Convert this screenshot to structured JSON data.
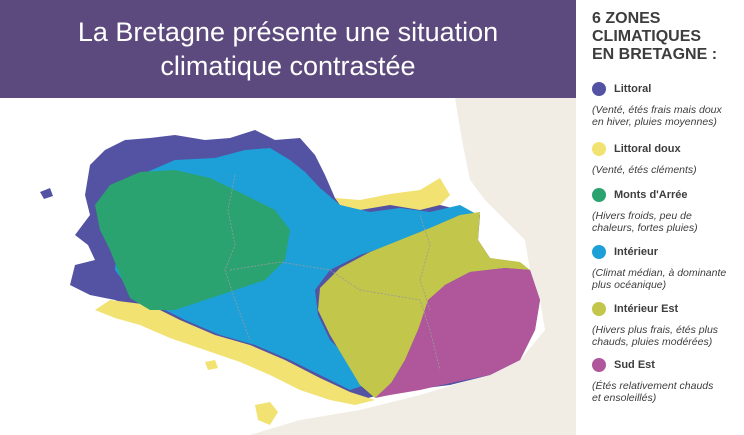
{
  "header": {
    "title_line1": "La Bretagne présente une situation",
    "title_line2": "climatique contrastée"
  },
  "legend": {
    "title_line1": "6 ZONES",
    "title_line2": "CLIMATIQUES",
    "title_line3": "EN BRETAGNE :",
    "zones": [
      {
        "name": "Littoral",
        "desc_line1": "(Venté, étés frais mais doux",
        "desc_line2": "en hiver, pluies moyennes)",
        "color": "#5452a3"
      },
      {
        "name": "Littoral doux",
        "desc_line1": "(Venté, étés cléments)",
        "desc_line2": "",
        "color": "#f1e272"
      },
      {
        "name": "Monts d'Arrée",
        "desc_line1": "(Hivers froids, peu de",
        "desc_line2": "chaleurs, fortes pluies)",
        "color": "#2aa370"
      },
      {
        "name": "Intérieur",
        "desc_line1": "(Climat médian, à dominante",
        "desc_line2": "plus océanique)",
        "color": "#1da0d8"
      },
      {
        "name": "Intérieur Est",
        "desc_line1": "(Hivers plus frais, étés plus",
        "desc_line2": "chauds, pluies modérées)",
        "color": "#c2c64a"
      },
      {
        "name": "Sud Est",
        "desc_line1": "(Étés relativement chauds",
        "desc_line2": "et ensoleillés)",
        "color": "#b0579c"
      }
    ]
  },
  "map": {
    "land_color": "#f2ede4",
    "border_color": "#9a9a9a"
  }
}
